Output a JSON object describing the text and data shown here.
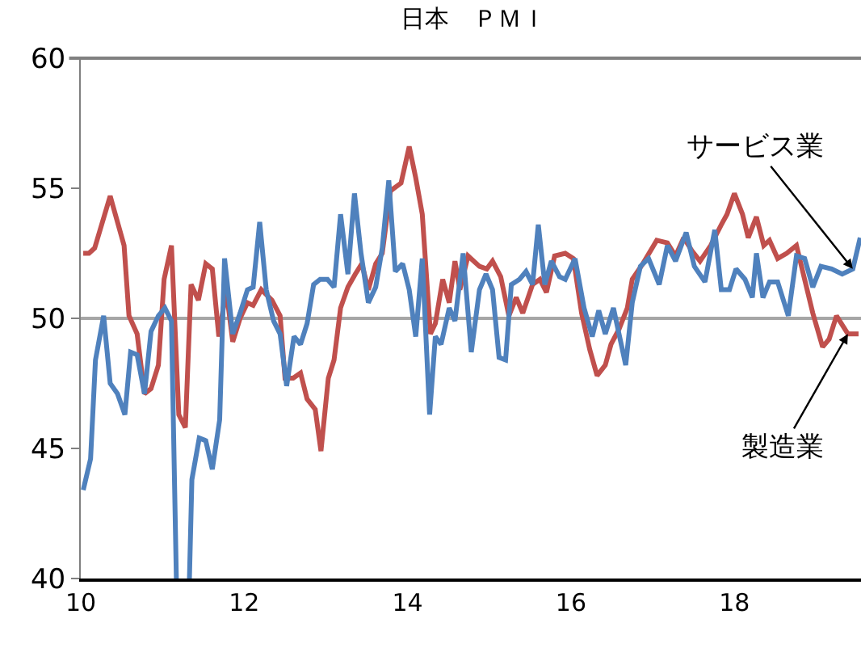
{
  "chart_data": {
    "type": "line",
    "title": "日本　ＰＭＩ",
    "xlim": [
      10,
      19.55
    ],
    "xticks": [
      10,
      12,
      14,
      16,
      18
    ],
    "ylim": [
      40,
      60
    ],
    "yticks": [
      40,
      45,
      50,
      55,
      60
    ],
    "grid": false,
    "marker": "none",
    "line_style": "solid",
    "ref_lines": [
      {
        "axis": "y",
        "value": 50,
        "color": "#a6a6a6"
      }
    ],
    "annotations": [
      {
        "text": "サービス業",
        "x": 19.45,
        "y": 51.9
      },
      {
        "text": "製造業",
        "x": 19.39,
        "y": 49.4
      }
    ],
    "series": [
      {
        "color": "#c0504d",
        "x": [
          10.03,
          10.1,
          10.17,
          10.36,
          10.53,
          10.59,
          10.69,
          10.78,
          10.86,
          10.95,
          11.02,
          11.11,
          11.2,
          11.28,
          11.35,
          11.44,
          11.53,
          11.61,
          11.69,
          11.78,
          11.86,
          11.95,
          12.04,
          12.11,
          12.21,
          12.34,
          12.44,
          12.5,
          12.6,
          12.69,
          12.77,
          12.87,
          12.94,
          13.03,
          13.1,
          13.18,
          13.27,
          13.36,
          13.44,
          13.52,
          13.61,
          13.69,
          13.79,
          13.92,
          14.02,
          14.1,
          14.18,
          14.28,
          14.34,
          14.43,
          14.51,
          14.58,
          14.64,
          14.74,
          14.88,
          14.97,
          15.04,
          15.14,
          15.24,
          15.33,
          15.41,
          15.53,
          15.62,
          15.7,
          15.8,
          15.93,
          16.03,
          16.13,
          16.23,
          16.32,
          16.42,
          16.49,
          16.59,
          16.69,
          16.75,
          16.88,
          17.05,
          17.18,
          17.28,
          17.38,
          17.48,
          17.58,
          17.71,
          17.84,
          17.91,
          18.0,
          18.1,
          18.17,
          18.27,
          18.36,
          18.43,
          18.53,
          18.64,
          18.76,
          18.86,
          18.96,
          19.08,
          19.16,
          19.25,
          19.39,
          19.52
        ],
        "values": [
          52.5,
          52.5,
          52.7,
          54.7,
          52.8,
          50.1,
          49.4,
          47.1,
          47.3,
          48.2,
          51.5,
          52.8,
          46.3,
          45.8,
          51.3,
          50.7,
          52.1,
          51.9,
          49.3,
          51.1,
          49.1,
          50.0,
          50.6,
          50.5,
          51.1,
          50.7,
          50.1,
          47.7,
          47.7,
          47.9,
          46.9,
          46.5,
          44.9,
          47.7,
          48.4,
          50.4,
          51.2,
          51.7,
          52.1,
          51.1,
          52.1,
          52.5,
          54.9,
          55.2,
          56.6,
          55.4,
          54.0,
          49.4,
          49.8,
          51.5,
          50.6,
          52.2,
          51.1,
          52.4,
          52.0,
          51.9,
          52.2,
          51.6,
          50.1,
          50.8,
          50.2,
          51.3,
          51.5,
          51.0,
          52.4,
          52.5,
          52.3,
          50.2,
          48.8,
          47.8,
          48.2,
          49.0,
          49.6,
          50.4,
          51.5,
          52.1,
          53.0,
          52.9,
          52.4,
          53.1,
          52.6,
          52.2,
          52.8,
          53.6,
          54.0,
          54.8,
          54.0,
          53.1,
          53.9,
          52.8,
          53.0,
          52.3,
          52.5,
          52.8,
          51.5,
          50.2,
          48.9,
          49.2,
          50.1,
          49.4,
          49.4
        ]
      },
      {
        "color": "#4f81bd",
        "x": [
          10.03,
          10.12,
          10.18,
          10.28,
          10.36,
          10.45,
          10.54,
          10.61,
          10.69,
          10.78,
          10.86,
          10.95,
          11.03,
          11.11,
          11.17,
          11.3,
          11.33,
          11.36,
          11.45,
          11.53,
          11.61,
          11.7,
          11.76,
          11.86,
          11.95,
          12.04,
          12.11,
          12.19,
          12.27,
          12.36,
          12.44,
          12.52,
          12.61,
          12.69,
          12.77,
          12.85,
          12.93,
          13.02,
          13.1,
          13.18,
          13.27,
          13.35,
          13.43,
          13.52,
          13.61,
          13.69,
          13.77,
          13.85,
          13.94,
          14.02,
          14.1,
          14.18,
          14.27,
          14.34,
          14.41,
          14.51,
          14.58,
          14.68,
          14.78,
          14.88,
          14.96,
          15.04,
          15.12,
          15.2,
          15.27,
          15.37,
          15.45,
          15.53,
          15.6,
          15.68,
          15.76,
          15.86,
          15.93,
          16.05,
          16.16,
          16.26,
          16.34,
          16.42,
          16.52,
          16.67,
          16.75,
          16.85,
          16.95,
          17.08,
          17.18,
          17.28,
          17.41,
          17.51,
          17.64,
          17.76,
          17.84,
          17.94,
          18.02,
          18.13,
          18.22,
          18.27,
          18.35,
          18.43,
          18.53,
          18.66,
          18.76,
          18.86,
          18.96,
          19.06,
          19.19,
          19.32,
          19.45,
          19.54
        ],
        "values": [
          43.4,
          44.6,
          48.4,
          50.1,
          47.5,
          47.1,
          46.3,
          48.7,
          48.6,
          47.1,
          49.5,
          50.1,
          50.4,
          49.9,
          40,
          null,
          40,
          43.8,
          45.4,
          45.3,
          44.2,
          46.1,
          52.3,
          49.4,
          50.2,
          51.1,
          51.2,
          53.7,
          51.1,
          49.9,
          49.4,
          47.4,
          49.3,
          49.0,
          49.8,
          51.3,
          51.5,
          51.5,
          51.2,
          54.0,
          51.7,
          54.8,
          52.5,
          50.6,
          51.2,
          52.7,
          55.3,
          51.8,
          52.1,
          51.1,
          49.3,
          52.3,
          46.3,
          49.3,
          49.0,
          50.4,
          49.9,
          52.5,
          48.7,
          51.1,
          51.7,
          51.1,
          48.5,
          48.4,
          51.3,
          51.5,
          51.8,
          51.3,
          53.6,
          51.3,
          52.2,
          51.6,
          51.5,
          52.3,
          50.4,
          49.3,
          50.3,
          49.4,
          50.4,
          48.2,
          50.6,
          52.0,
          52.3,
          51.3,
          52.8,
          52.2,
          53.3,
          52.0,
          51.4,
          53.4,
          51.1,
          51.1,
          51.9,
          51.5,
          50.8,
          52.5,
          50.8,
          51.4,
          51.4,
          50.1,
          52.4,
          52.3,
          51.2,
          52.0,
          51.9,
          51.7,
          51.9,
          53.1
        ]
      }
    ]
  }
}
